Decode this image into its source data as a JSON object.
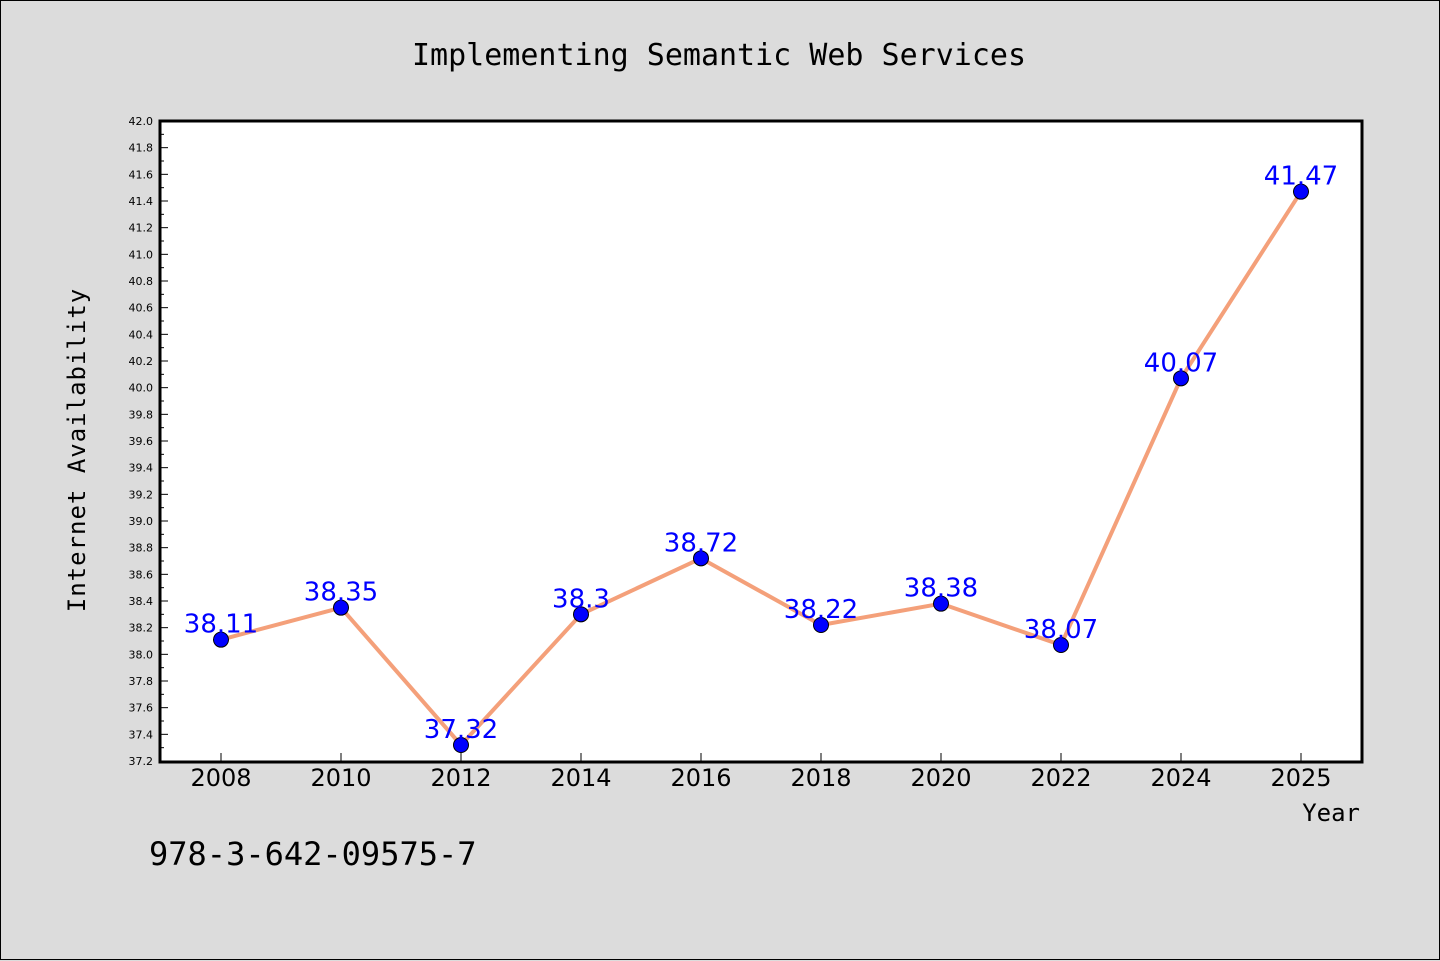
{
  "chart_data": {
    "type": "line",
    "title": "Implementing Semantic Web Services",
    "xlabel": "Year",
    "ylabel": "Internet Availability",
    "categories": [
      "2008",
      "2010",
      "2012",
      "2014",
      "2016",
      "2018",
      "2020",
      "2022",
      "2024",
      "2025"
    ],
    "values": [
      38.11,
      38.35,
      37.32,
      38.3,
      38.72,
      38.22,
      38.38,
      38.07,
      40.07,
      41.47
    ],
    "data_labels": [
      "38.11",
      "38.35",
      "37.32",
      "38.3",
      "38.72",
      "38.22",
      "38.38",
      "38.07",
      "40.07",
      "41.47"
    ],
    "ylim": [
      37.2,
      42.0
    ],
    "yticks": [
      "37.2",
      "37.4",
      "37.6",
      "37.8",
      "38.0",
      "38.2",
      "38.4",
      "38.6",
      "38.8",
      "39.0",
      "39.2",
      "39.4",
      "39.6",
      "39.8",
      "40.0",
      "40.2",
      "40.4",
      "40.6",
      "40.8",
      "41.0",
      "41.2",
      "41.4",
      "41.6",
      "41.8",
      "42.0"
    ],
    "grid": false,
    "line_color": "#f4a07a",
    "marker_color": "#0000ff",
    "label_color": "#0000ff"
  },
  "footer": {
    "isbn": "978-3-642-09575-7"
  }
}
